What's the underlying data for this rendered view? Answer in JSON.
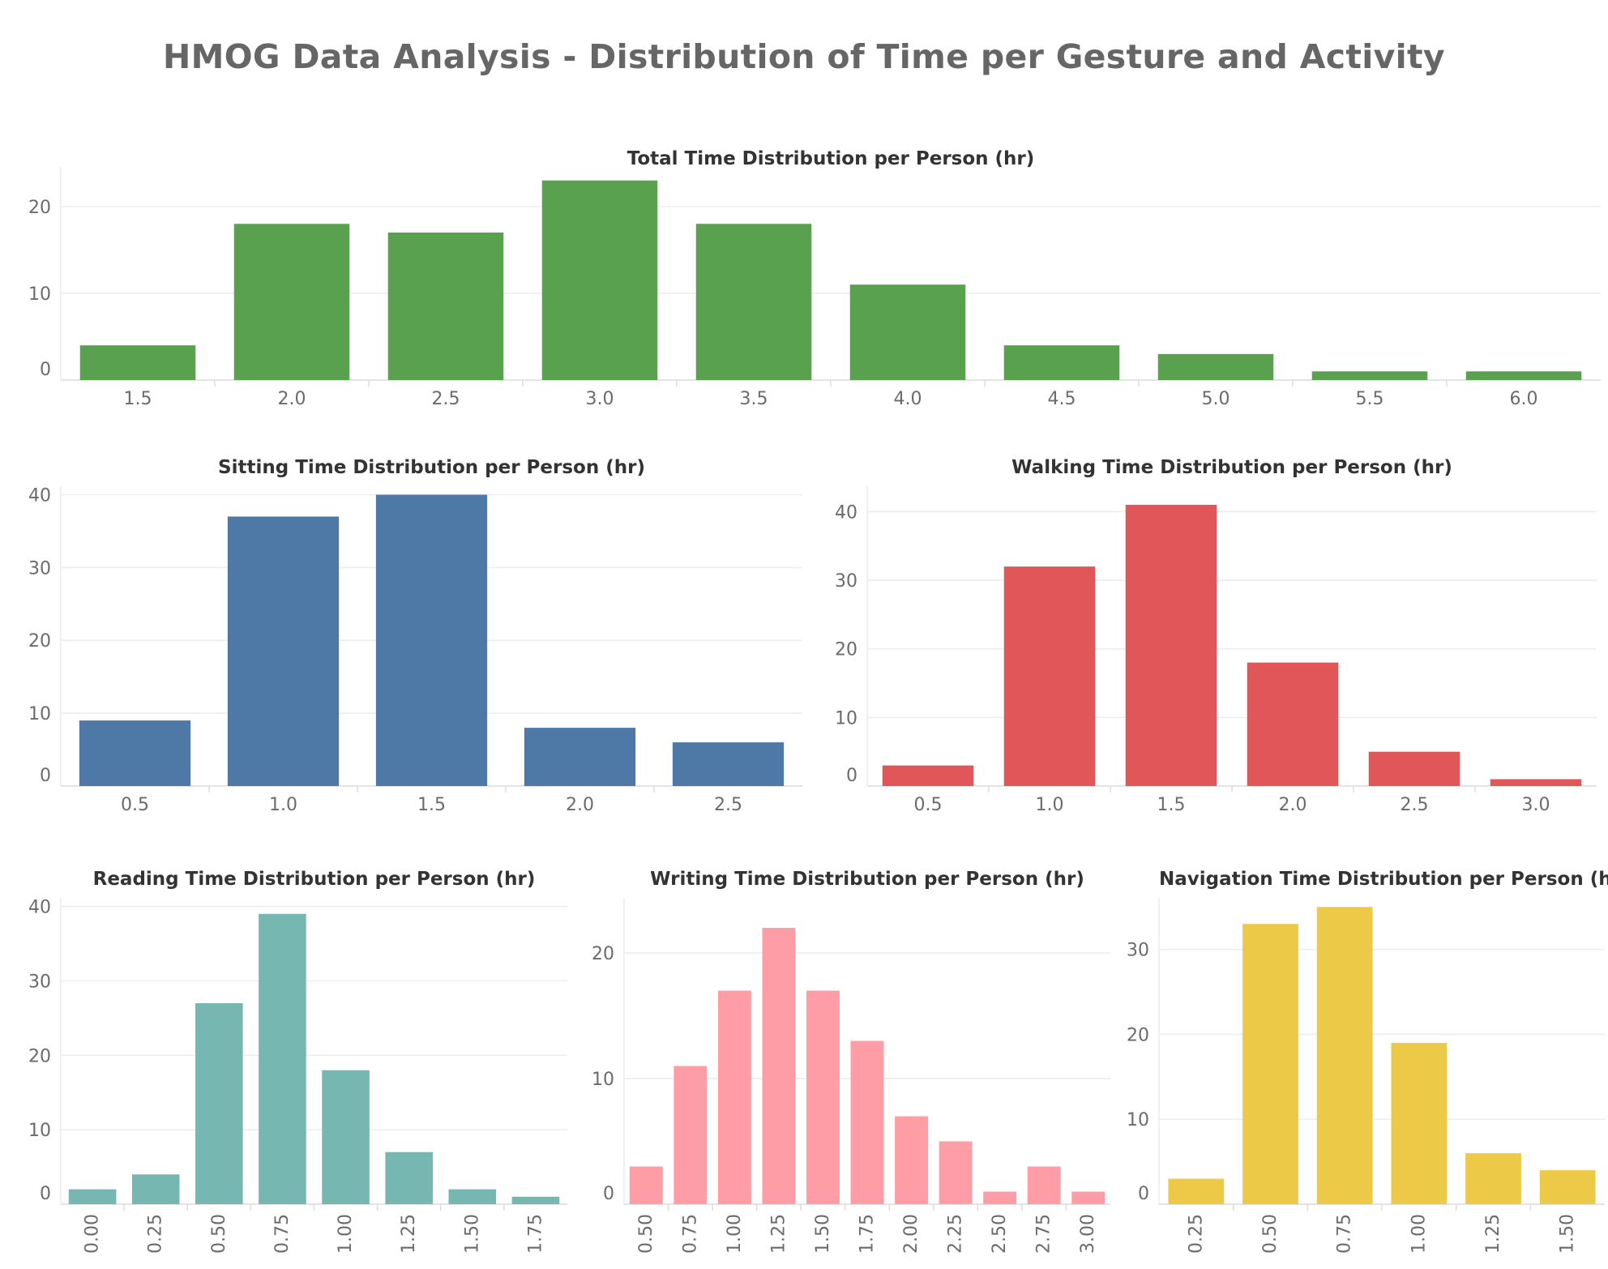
{
  "dashboard": {
    "title": "HMOG Data Analysis - Distribution of Time per Gesture and Activity"
  },
  "colors": {
    "green": "#59a14f",
    "blue": "#4e79a7",
    "red": "#e15759",
    "teal": "#76b7b2",
    "pink": "#ff9da7",
    "yellow": "#edc948",
    "grid": "#ececec",
    "tick_text": "#6b6b6b"
  },
  "chart_data": [
    {
      "id": "total",
      "type": "bar",
      "title": "Total Time Distribution per Person (hr)",
      "xlabel": "",
      "ylabel": "",
      "categories": [
        "1.5",
        "2.0",
        "2.5",
        "3.0",
        "3.5",
        "4.0",
        "4.5",
        "5.0",
        "5.5",
        "6.0"
      ],
      "values": [
        4,
        18,
        17,
        23,
        18,
        11,
        4,
        3,
        1,
        1
      ],
      "yticks": [
        0,
        10,
        20
      ],
      "ylim": [
        0,
        24
      ],
      "color": "#59a14f",
      "xtick_rotation": 0,
      "grid": true
    },
    {
      "id": "sitting",
      "type": "bar",
      "title": "Sitting Time Distribution per Person (hr)",
      "xlabel": "",
      "ylabel": "",
      "categories": [
        "0.5",
        "1.0",
        "1.5",
        "2.0",
        "2.5"
      ],
      "values": [
        9,
        37,
        40,
        8,
        6
      ],
      "yticks": [
        0,
        10,
        20,
        30,
        40
      ],
      "ylim": [
        0,
        40.5
      ],
      "color": "#4e79a7",
      "xtick_rotation": 0,
      "grid": true
    },
    {
      "id": "walking",
      "type": "bar",
      "title": "Walking Time Distribution per Person (hr)",
      "xlabel": "",
      "ylabel": "",
      "categories": [
        "0.5",
        "1.0",
        "1.5",
        "2.0",
        "2.5",
        "3.0"
      ],
      "values": [
        3,
        32,
        41,
        18,
        5,
        1
      ],
      "yticks": [
        0,
        10,
        20,
        30,
        40
      ],
      "ylim": [
        0,
        43
      ],
      "color": "#e15759",
      "xtick_rotation": 0,
      "grid": true
    },
    {
      "id": "reading",
      "type": "bar",
      "title": "Reading Time Distribution per Person (hr)",
      "xlabel": "",
      "ylabel": "",
      "categories": [
        "0.00",
        "0.25",
        "0.50",
        "0.75",
        "1.00",
        "1.25",
        "1.50",
        "1.75"
      ],
      "values": [
        2,
        4,
        27,
        39,
        18,
        7,
        2,
        1
      ],
      "yticks": [
        0,
        10,
        20,
        30,
        40
      ],
      "ylim": [
        0,
        40.5
      ],
      "color": "#76b7b2",
      "xtick_rotation": -90,
      "grid": true
    },
    {
      "id": "writing",
      "type": "bar",
      "title": "Writing Time Distribution per Person (hr)",
      "xlabel": "",
      "ylabel": "",
      "categories": [
        "0.50",
        "0.75",
        "1.00",
        "1.25",
        "1.50",
        "1.75",
        "2.00",
        "2.25",
        "2.50",
        "2.75",
        "3.00"
      ],
      "values": [
        3,
        11,
        17,
        22,
        17,
        13,
        7,
        5,
        1,
        3,
        1
      ],
      "yticks": [
        0,
        10,
        20
      ],
      "ylim": [
        0,
        24
      ],
      "color": "#ff9da7",
      "xtick_rotation": -90,
      "grid": true
    },
    {
      "id": "navigation",
      "type": "bar",
      "title": "Navigation Time Distribution per Person (hr)",
      "xlabel": "",
      "ylabel": "",
      "categories": [
        "0.25",
        "0.50",
        "0.75",
        "1.00",
        "1.25",
        "1.50"
      ],
      "values": [
        3,
        33,
        35,
        19,
        6,
        4
      ],
      "yticks": [
        0,
        10,
        20,
        30
      ],
      "ylim": [
        0,
        35.5
      ],
      "color": "#edc948",
      "xtick_rotation": -90,
      "grid": true
    }
  ]
}
